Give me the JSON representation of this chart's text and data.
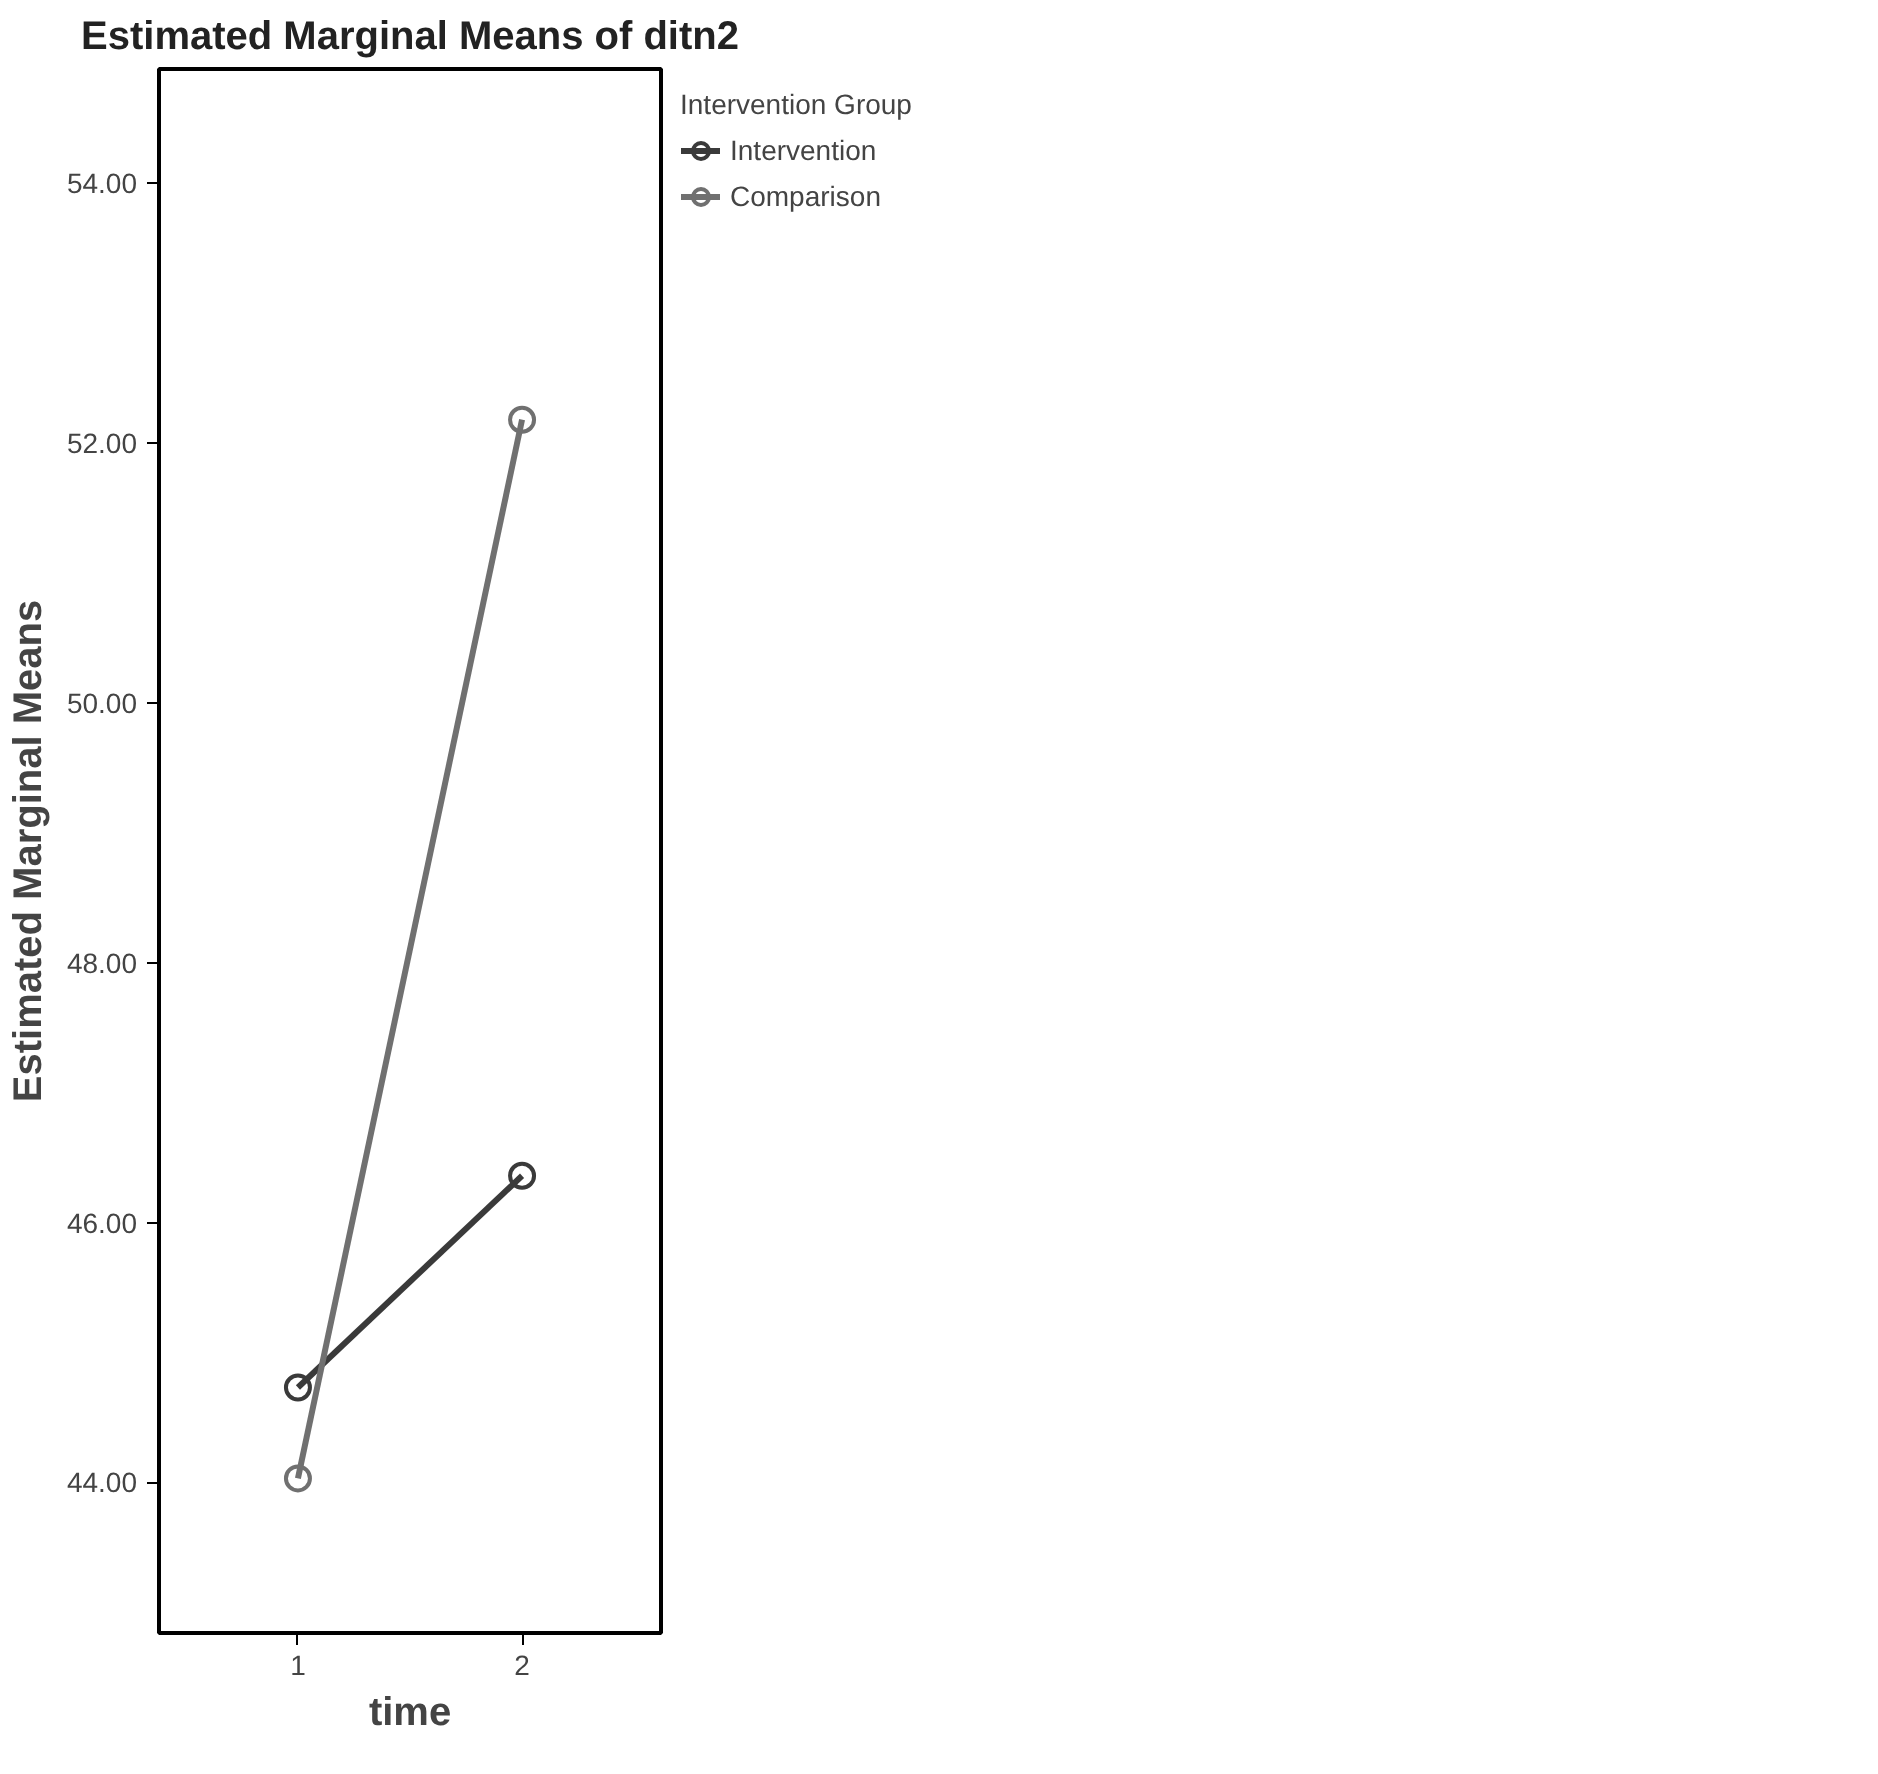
{
  "chart_data": {
    "type": "line",
    "title": "Estimated Marginal Means of ditn2",
    "xlabel": "time",
    "ylabel": "Estimated Marginal Means",
    "legend_title": "Intervention Group",
    "categories": [
      "1",
      "2"
    ],
    "series": [
      {
        "name": "Intervention",
        "color": "#3a3a3a",
        "values": [
          44.73,
          46.36
        ]
      },
      {
        "name": "Comparison",
        "color": "#707070",
        "values": [
          44.03,
          52.18
        ]
      }
    ],
    "ylim": [
      42.84,
      54.88
    ],
    "yticks": [
      {
        "value": 44,
        "label": "44.00"
      },
      {
        "value": 46,
        "label": "46.00"
      },
      {
        "value": 48,
        "label": "48.00"
      },
      {
        "value": 50,
        "label": "50.00"
      },
      {
        "value": 52,
        "label": "52.00"
      },
      {
        "value": 54,
        "label": "54.00"
      }
    ],
    "marker": "circle",
    "legend": "top right",
    "grid": false
  }
}
